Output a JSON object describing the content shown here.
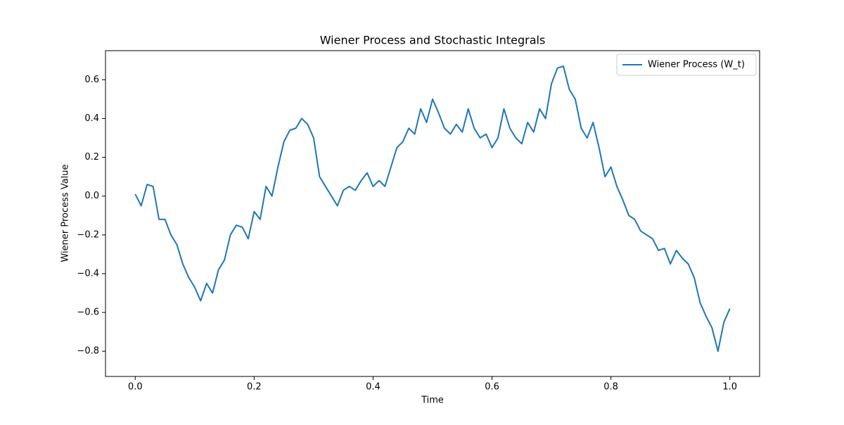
{
  "chart_data": {
    "type": "line",
    "title": "Wiener Process and Stochastic Integrals",
    "x_label": "Time",
    "y_label": "Wiener Process Value",
    "x": [
      0,
      0.01,
      0.02,
      0.03,
      0.04,
      0.05,
      0.06,
      0.07,
      0.08,
      0.09,
      0.1,
      0.11,
      0.12,
      0.13,
      0.14,
      0.15,
      0.16,
      0.17,
      0.18,
      0.19,
      0.2,
      0.21,
      0.22,
      0.23,
      0.24,
      0.25,
      0.26,
      0.27,
      0.28,
      0.29,
      0.3,
      0.31,
      0.32,
      0.33,
      0.34,
      0.35,
      0.36,
      0.37,
      0.38,
      0.39,
      0.4,
      0.41,
      0.42,
      0.43,
      0.44,
      0.45,
      0.46,
      0.47,
      0.48,
      0.49,
      0.5,
      0.51,
      0.52,
      0.53,
      0.54,
      0.55,
      0.56,
      0.57,
      0.58,
      0.59,
      0.6,
      0.61,
      0.62,
      0.63,
      0.64,
      0.65,
      0.66,
      0.67,
      0.68,
      0.69,
      0.7,
      0.71,
      0.72,
      0.73,
      0.74,
      0.75,
      0.76,
      0.77,
      0.78,
      0.79,
      0.8,
      0.81,
      0.82,
      0.83,
      0.84,
      0.85,
      0.86,
      0.87,
      0.88,
      0.89,
      0.9,
      0.91,
      0.92,
      0.93,
      0.94,
      0.95,
      0.96,
      0.97,
      0.98,
      0.99,
      1
    ],
    "series": [
      {
        "name": "Wiener Process (W_t)",
        "color": "#1f77b4",
        "values": [
          0.01,
          -0.05,
          0.06,
          0.05,
          -0.12,
          -0.12,
          -0.2,
          -0.25,
          -0.35,
          -0.42,
          -0.47,
          -0.54,
          -0.45,
          -0.5,
          -0.38,
          -0.33,
          -0.2,
          -0.15,
          -0.16,
          -0.22,
          -0.08,
          -0.12,
          0.05,
          0,
          0.15,
          0.28,
          0.34,
          0.35,
          0.4,
          0.37,
          0.3,
          0.1,
          0.05,
          0,
          -0.05,
          0.03,
          0.05,
          0.03,
          0.08,
          0.12,
          0.05,
          0.08,
          0.05,
          0.15,
          0.25,
          0.28,
          0.35,
          0.32,
          0.45,
          0.38,
          0.5,
          0.43,
          0.35,
          0.32,
          0.37,
          0.33,
          0.45,
          0.35,
          0.3,
          0.32,
          0.25,
          0.3,
          0.45,
          0.35,
          0.3,
          0.27,
          0.38,
          0.33,
          0.45,
          0.4,
          0.58,
          0.66,
          0.67,
          0.55,
          0.5,
          0.35,
          0.3,
          0.38,
          0.25,
          0.1,
          0.15,
          0.05,
          -0.02,
          -0.1,
          -0.12,
          -0.18,
          -0.2,
          -0.22,
          -0.28,
          -0.27,
          -0.35,
          -0.28,
          -0.32,
          -0.35,
          -0.42,
          -0.55,
          -0.62,
          -0.68,
          -0.8,
          -0.65,
          -0.58
        ]
      }
    ],
    "xlim": [
      -0.05,
      1.05
    ],
    "ylim": [
      -0.93,
      0.75
    ],
    "xticks": [
      {
        "value": 0,
        "label": "0.0"
      },
      {
        "value": 0.2,
        "label": "0.2"
      },
      {
        "value": 0.4,
        "label": "0.4"
      },
      {
        "value": 0.6,
        "label": "0.6"
      },
      {
        "value": 0.8,
        "label": "0.8"
      },
      {
        "value": 1,
        "label": "1.0"
      }
    ],
    "yticks": [
      {
        "value": -0.8,
        "label": "−0.8"
      },
      {
        "value": -0.6,
        "label": "−0.6"
      },
      {
        "value": -0.4,
        "label": "−0.4"
      },
      {
        "value": -0.2,
        "label": "−0.2"
      },
      {
        "value": 0,
        "label": "0.0"
      },
      0.2,
      0.4,
      0.6
    ],
    "legend": "upper right"
  }
}
